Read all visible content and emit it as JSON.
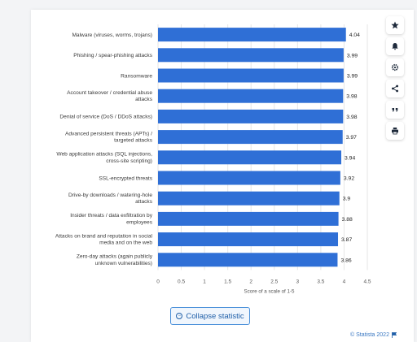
{
  "chart_data": {
    "type": "bar",
    "orientation": "horizontal",
    "categories": [
      [
        "Malware (viruses, worms, trojans)"
      ],
      [
        "Phishing / spear-phishing attacks"
      ],
      [
        "Ransomware"
      ],
      [
        "Account takeover / credential abuse",
        "attacks"
      ],
      [
        "Denial of service (DoS / DDoS attacks)"
      ],
      [
        "Advanced persistent threats (APTs) /",
        "targeted attacks"
      ],
      [
        "Web application attacks (SQL injections,",
        "cross-site scripting)"
      ],
      [
        "SSL-encrypted threats"
      ],
      [
        "Drive-by downloads / watering-hole",
        "attacks"
      ],
      [
        "Insider threats / data exfiltration by",
        "employees"
      ],
      [
        "Attacks on brand and reputation in social",
        "media and on the web"
      ],
      [
        "Zero-day attacks (again publicly",
        "unknown vulnerabilities)"
      ]
    ],
    "values": [
      4.04,
      3.99,
      3.99,
      3.98,
      3.98,
      3.97,
      3.94,
      3.92,
      3.9,
      3.88,
      3.87,
      3.86
    ],
    "value_labels": [
      "4.04",
      "3.99",
      "3.99",
      "3.98",
      "3.98",
      "3.97",
      "3.94",
      "3.92",
      "3.9",
      "3.88",
      "3.87",
      "3.86"
    ],
    "xticks": [
      "0",
      "0.5",
      "1",
      "1.5",
      "2",
      "2.5",
      "3",
      "3.5",
      "4",
      "4.5"
    ],
    "xlim": [
      0,
      4.5
    ],
    "xlabel": "Score of a scale of 1-5",
    "ylabel": "",
    "title": "",
    "grid": true,
    "bar_color": "#2f6fd6"
  },
  "toolbar": {
    "icons": [
      "star-icon",
      "bell-icon",
      "gear-icon",
      "share-icon",
      "quote-icon",
      "print-icon"
    ]
  },
  "collapse_button": {
    "label": "Collapse statistic"
  },
  "credit": {
    "label": "© Statista 2022"
  }
}
